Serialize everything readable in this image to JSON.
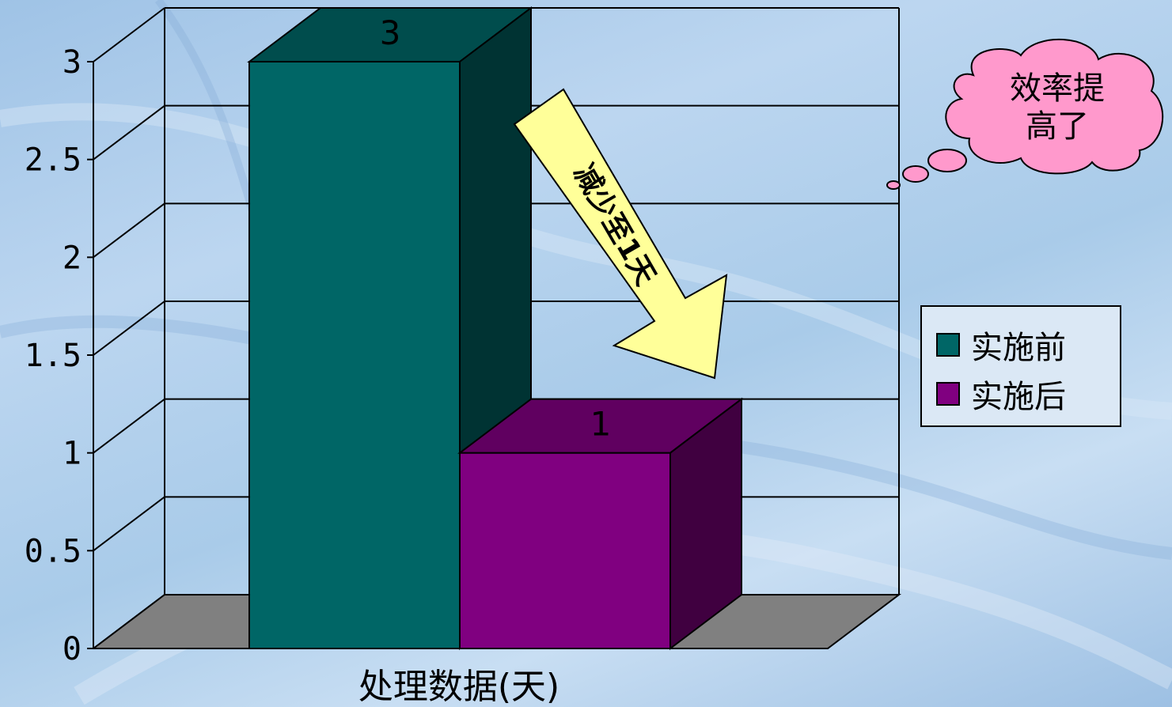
{
  "chart_data": {
    "type": "bar",
    "categories": [
      "处理数据(天)"
    ],
    "series": [
      {
        "name": "实施前",
        "values": [
          3
        ],
        "color": "#006666"
      },
      {
        "name": "实施后",
        "values": [
          1
        ],
        "color": "#800080"
      }
    ],
    "xlabel": "处理数据(天)",
    "ylabel": "",
    "ylim": [
      0,
      3
    ],
    "yticks": [
      0,
      0.5,
      1,
      1.5,
      2,
      2.5,
      3
    ],
    "ytick_labels": [
      "0",
      "0.5",
      "1",
      "1.5",
      "2",
      "2.5",
      "3"
    ],
    "data_labels": [
      "3",
      "1"
    ],
    "grid": true,
    "three_d": true,
    "legend": {
      "position": "right",
      "entries": [
        "实施前",
        "实施后"
      ]
    }
  },
  "annotations": {
    "arrow_text": "减少至1天",
    "callout_text_line1": "效率提",
    "callout_text_line2": "高了"
  },
  "colors": {
    "arrow_fill": "#ffff99",
    "callout_fill": "#ff99cc",
    "floor_fill": "#808080"
  }
}
